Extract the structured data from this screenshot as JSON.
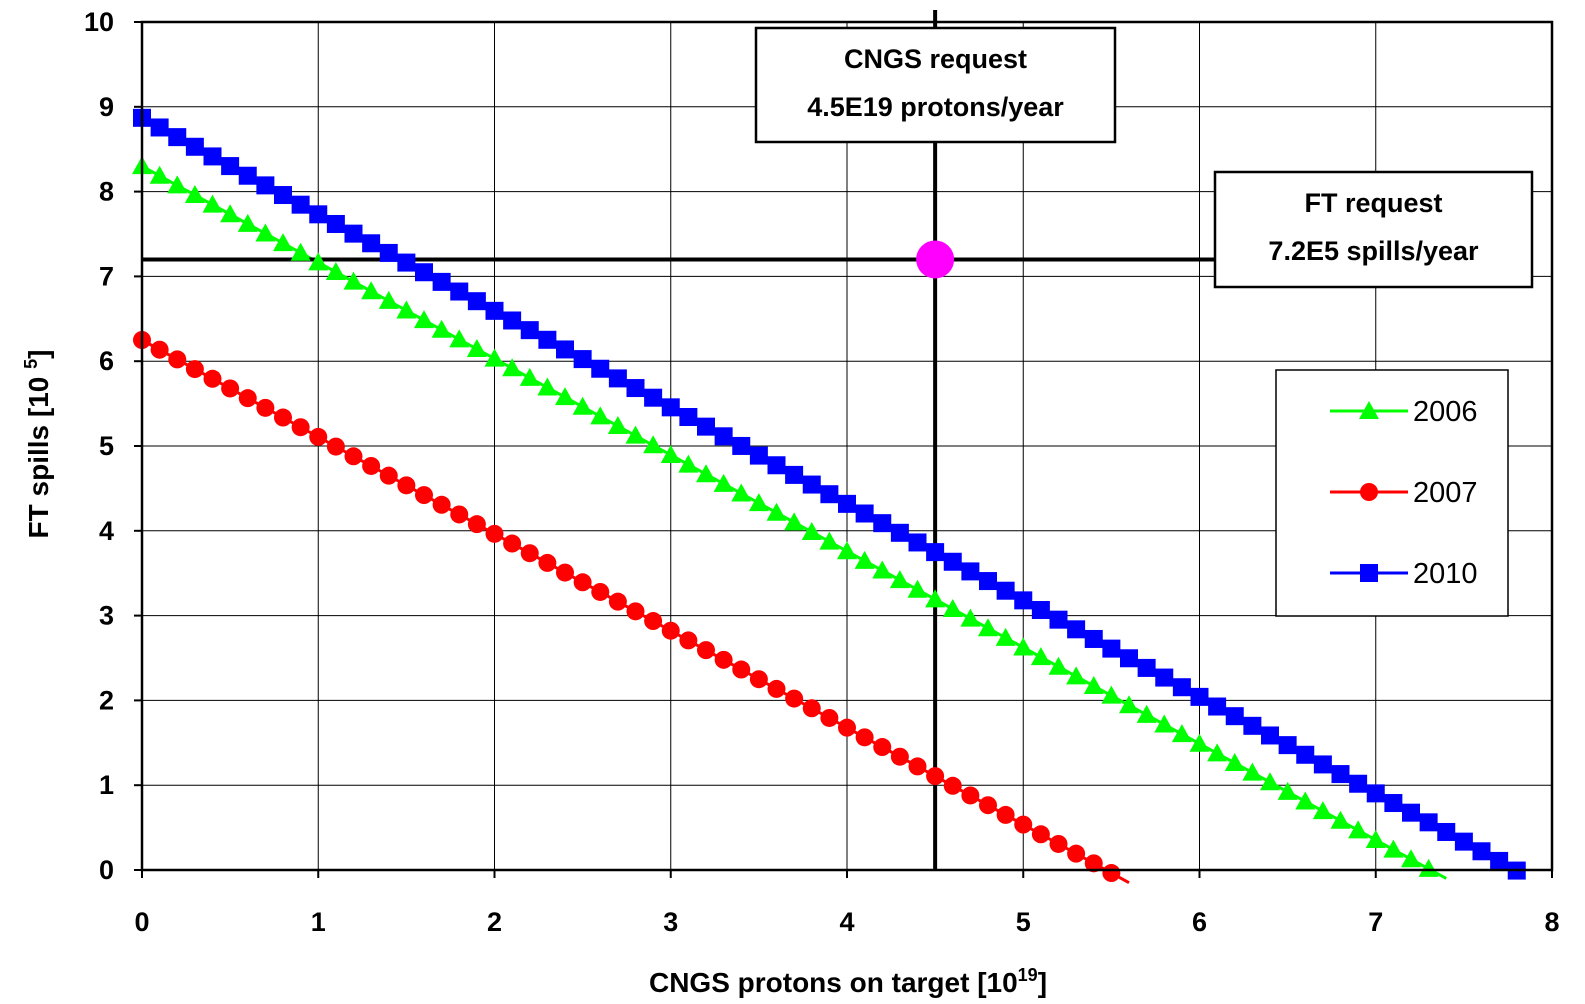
{
  "chart_data": {
    "type": "line",
    "xlabel": {
      "text": "CNGS protons on target [10",
      "sup": "19",
      "suffix": "]"
    },
    "ylabel": {
      "text": "FT spills [10 ",
      "sup": "5",
      "suffix": "]"
    },
    "xlim": [
      0,
      8
    ],
    "ylim": [
      0,
      10
    ],
    "xticks": [
      "0",
      "1",
      "2",
      "3",
      "4",
      "5",
      "6",
      "7",
      "8"
    ],
    "yticks": [
      "0",
      "1",
      "2",
      "3",
      "4",
      "5",
      "6",
      "7",
      "8",
      "9",
      "10"
    ],
    "grid": true,
    "legend_position": "right",
    "series": [
      {
        "name": "2006",
        "color": "#00ff00",
        "marker": "triangle",
        "x_start": 0,
        "y_start": 8.3,
        "x_end": 7.4,
        "y_end": -0.1,
        "step": 0.1,
        "marker_x_max": 7.3
      },
      {
        "name": "2007",
        "color": "#ff0000",
        "marker": "circle",
        "x_start": 0,
        "y_start": 6.25,
        "x_end": 5.6,
        "y_end": -0.15,
        "step": 0.1,
        "marker_x_max": 5.5
      },
      {
        "name": "2010",
        "color": "#0000ff",
        "marker": "square",
        "x_start": 0,
        "y_start": 8.87,
        "x_end": 7.75,
        "y_end": 0.05,
        "step": 0.1,
        "marker_x_max": 7.75
      }
    ],
    "reference_lines": {
      "vertical_x": 4.5,
      "horizontal_y": 7.2
    },
    "point": {
      "x": 4.5,
      "y": 7.2,
      "color": "#ff00ff"
    },
    "annotations": [
      {
        "id": "cngs",
        "lines": [
          "CNGS request",
          "4.5E19 protons/year"
        ]
      },
      {
        "id": "ft",
        "lines": [
          "FT request",
          "7.2E5 spills/year"
        ]
      }
    ]
  }
}
